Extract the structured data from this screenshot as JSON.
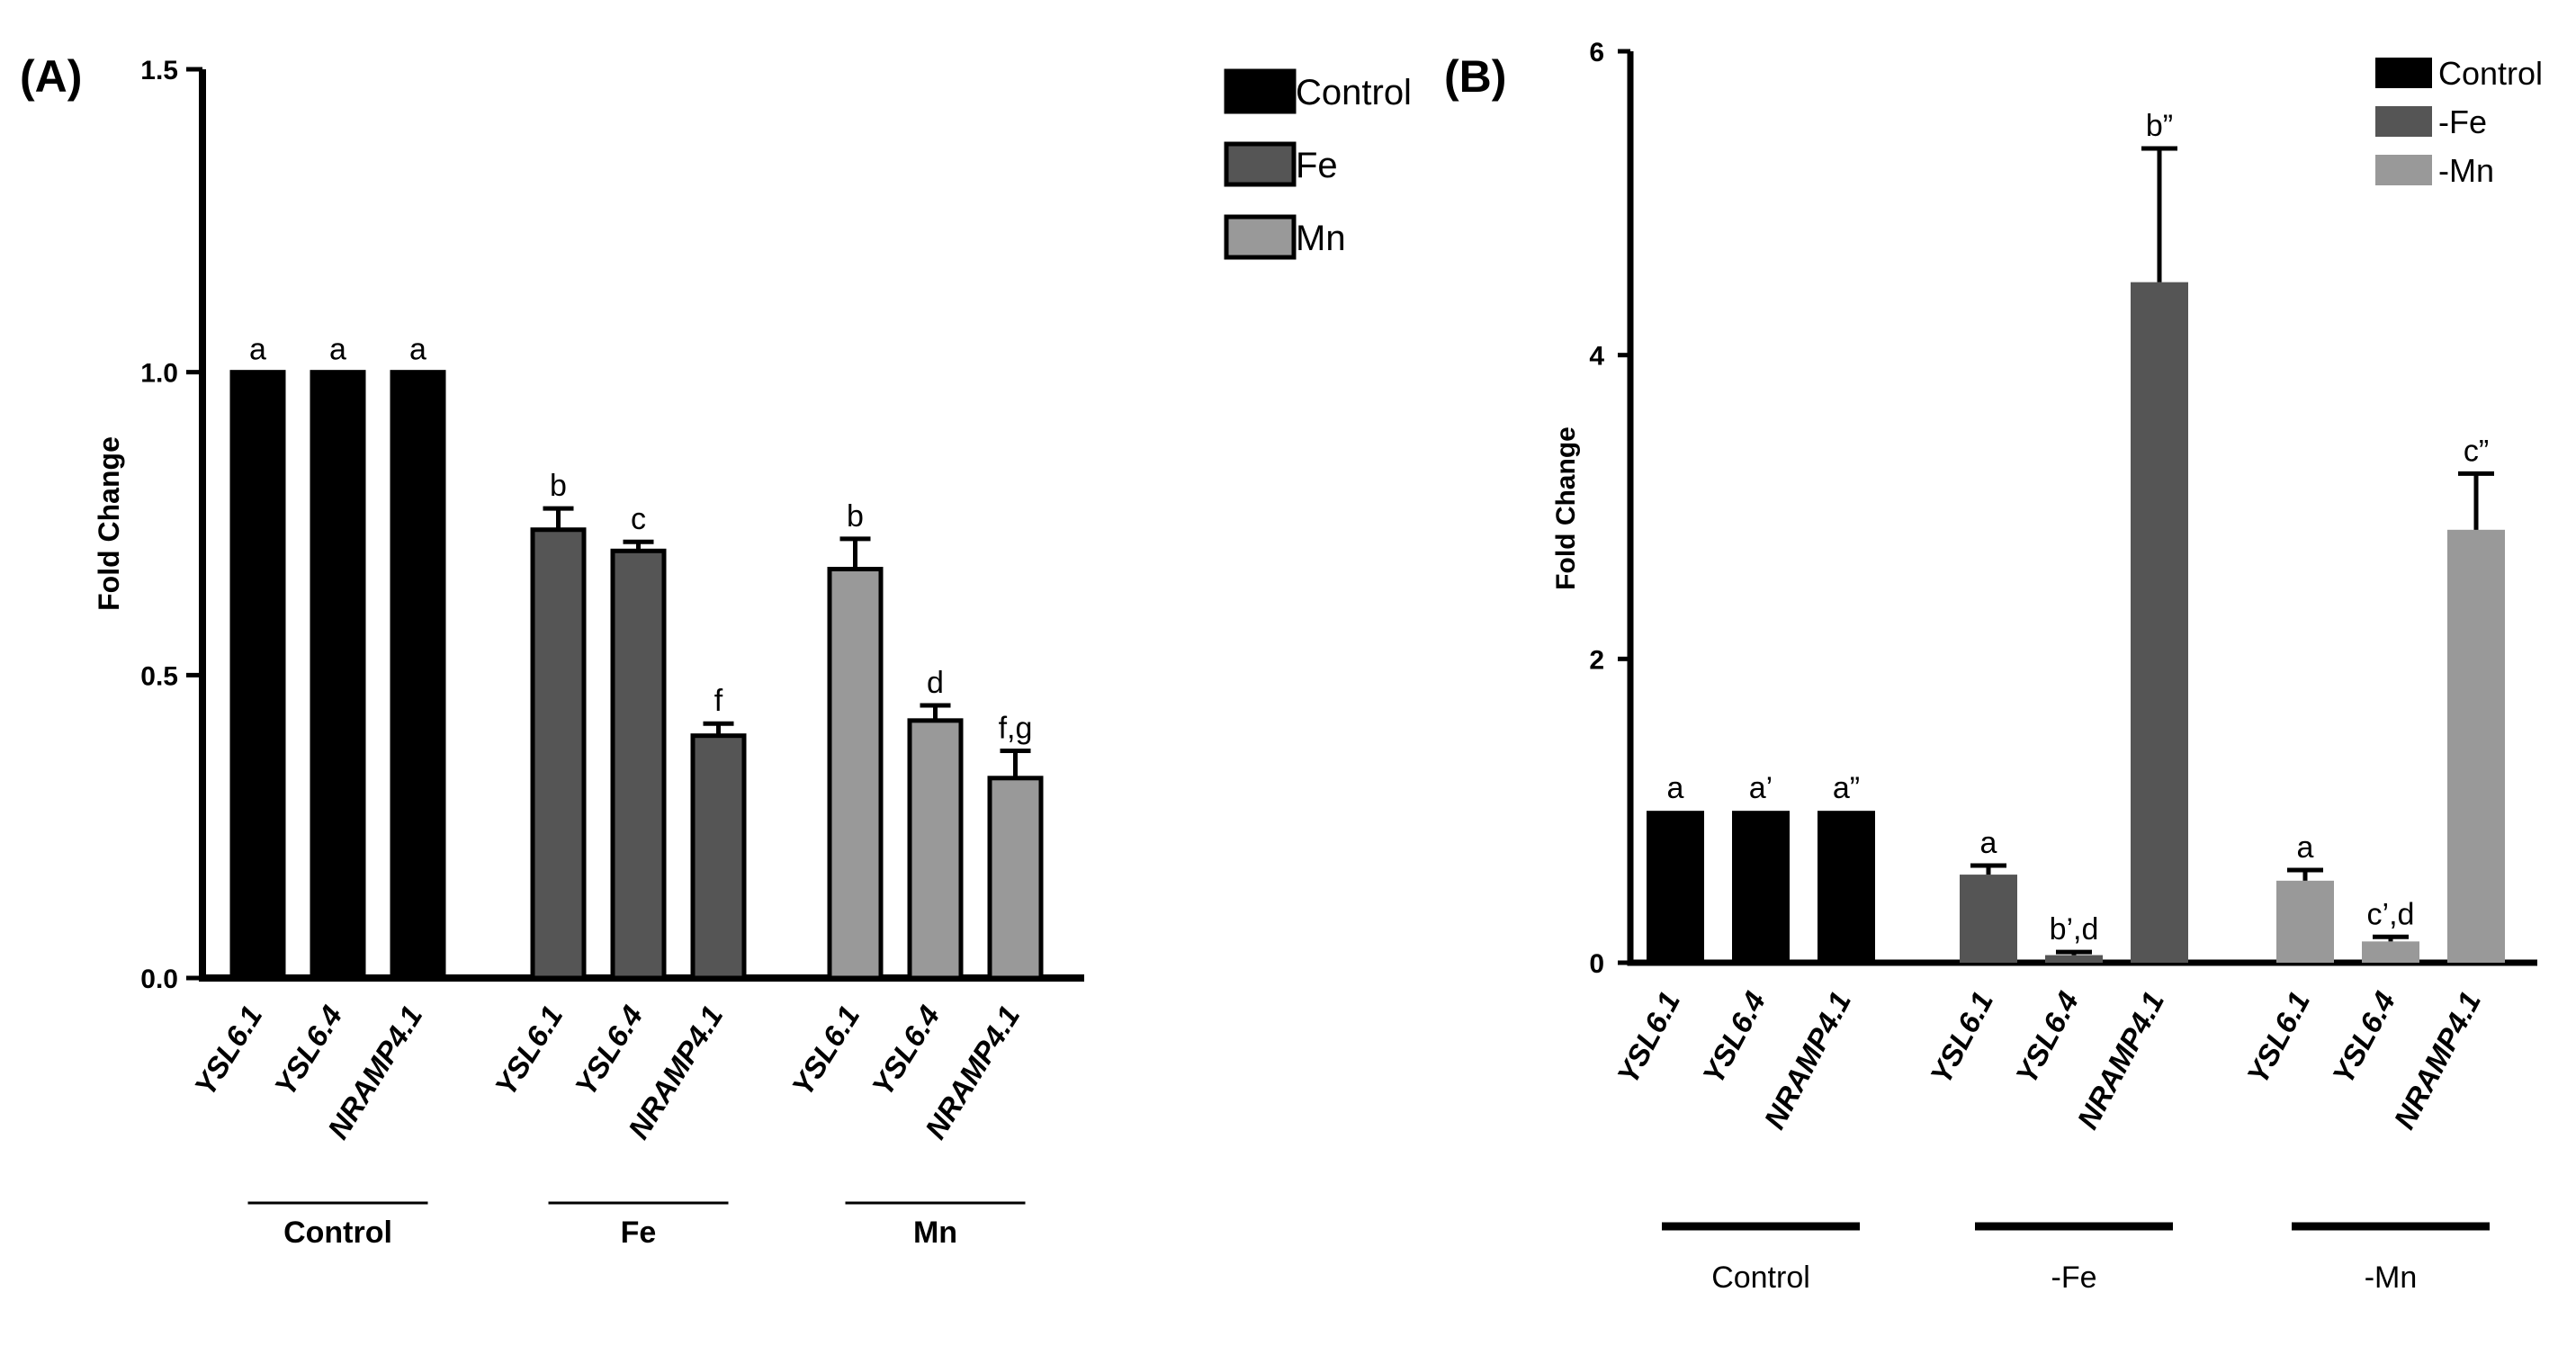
{
  "chart_data": [
    {
      "panel": "(A)",
      "type": "bar",
      "title": "",
      "xlabel": "",
      "ylabel": "Fold Change",
      "ylim": [
        0,
        1.5
      ],
      "yticks": [
        "0.0",
        "0.5",
        "1.0",
        "1.5"
      ],
      "grid": false,
      "legend_position": "right",
      "categories": [
        "YSL6.1",
        "YSL6.4",
        "NRAMP4.1"
      ],
      "groups": [
        "Control",
        "Fe",
        "Mn"
      ],
      "series": [
        {
          "name": "Control",
          "color": "#000000",
          "values": [
            1.0,
            1.0,
            1.0
          ],
          "errors": [
            0,
            0,
            0
          ],
          "letters": [
            "a",
            "a",
            "a"
          ]
        },
        {
          "name": "Fe",
          "color": "#555555",
          "values": [
            0.74,
            0.705,
            0.4
          ],
          "errors": [
            0.035,
            0.015,
            0.02
          ],
          "letters": [
            "b",
            "c",
            "f"
          ]
        },
        {
          "name": "Mn",
          "color": "#999999",
          "values": [
            0.675,
            0.425,
            0.33
          ],
          "errors": [
            0.05,
            0.025,
            0.045
          ],
          "letters": [
            "b",
            "d",
            "f,g"
          ]
        }
      ]
    },
    {
      "panel": "(B)",
      "type": "bar",
      "title": "",
      "xlabel": "",
      "ylabel": "Fold Change",
      "ylim": [
        0,
        6
      ],
      "yticks": [
        "0",
        "2",
        "4",
        "6"
      ],
      "grid": false,
      "legend_position": "top-right",
      "categories": [
        "YSL6.1",
        "YSL6.4",
        "NRAMP4.1"
      ],
      "groups": [
        "Control",
        "-Fe",
        "-Mn"
      ],
      "series": [
        {
          "name": "Control",
          "color": "#000000",
          "values": [
            1.0,
            1.0,
            1.0
          ],
          "errors": [
            0,
            0,
            0
          ],
          "letters": [
            "a",
            "a’",
            "a”"
          ]
        },
        {
          "name": "-Fe",
          "color": "#555555",
          "values": [
            0.58,
            0.05,
            4.48
          ],
          "errors": [
            0.06,
            0.02,
            0.88
          ],
          "letters": [
            "a",
            "b’,d",
            "b”"
          ]
        },
        {
          "name": "-Mn",
          "color": "#999999",
          "values": [
            0.54,
            0.14,
            2.85
          ],
          "errors": [
            0.07,
            0.03,
            0.37
          ],
          "letters": [
            "a",
            "c’,d",
            "c”"
          ]
        }
      ]
    }
  ]
}
